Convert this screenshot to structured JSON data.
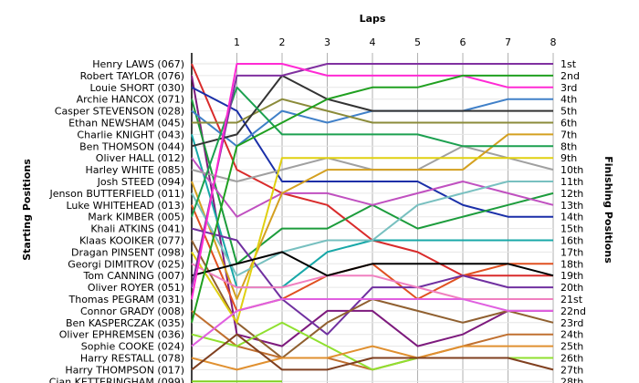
{
  "chart_data": {
    "type": "line",
    "xlabel": "Laps",
    "ylabel_left": "Starting Positions",
    "ylabel_right": "Finishing Positions",
    "laps": [
      1,
      2,
      3,
      4,
      5,
      6,
      7,
      8
    ],
    "finish_labels": [
      "1st",
      "2nd",
      "3rd",
      "4th",
      "5th",
      "6th",
      "7th",
      "8th",
      "9th",
      "10th",
      "11th",
      "12th",
      "13th",
      "14th",
      "15th",
      "16th",
      "17th",
      "18th",
      "19th",
      "20th",
      "21st",
      "22nd",
      "23rd",
      "24th",
      "25th",
      "26th",
      "27th",
      "28th"
    ],
    "grid": true,
    "series": [
      {
        "name": "Henry LAWS (067)",
        "color": "#d92b2b",
        "positions": [
          1,
          10,
          12,
          13,
          16,
          17,
          19,
          19,
          19
        ]
      },
      {
        "name": "Robert TAYLOR (076)",
        "color": "#7d1a7d",
        "positions": [
          2,
          24,
          25,
          22,
          22,
          25,
          24,
          22,
          22
        ]
      },
      {
        "name": "Louie SHORT (030)",
        "color": "#1a2fa8",
        "positions": [
          3,
          5,
          11,
          11,
          11,
          11,
          13,
          14,
          14
        ]
      },
      {
        "name": "Archie HANCOX (071)",
        "color": "#1c9c3c",
        "positions": [
          4,
          18,
          15,
          15,
          13,
          15,
          14,
          13,
          12
        ]
      },
      {
        "name": "Casper STEVENSON (028)",
        "color": "#4080c8",
        "positions": [
          5,
          8,
          5,
          6,
          5,
          5,
          5,
          4,
          4
        ]
      },
      {
        "name": "Ethan NEWSHAM (045)",
        "color": "#8b8b3a",
        "positions": [
          6,
          6,
          4,
          5,
          6,
          6,
          6,
          6,
          6
        ]
      },
      {
        "name": "Charlie KNIGHT (043)",
        "color": "#18a8a8",
        "positions": [
          7,
          20,
          20,
          17,
          16,
          16,
          16,
          16,
          16
        ]
      },
      {
        "name": "Ben THOMSON (044)",
        "color": "#333333",
        "positions": [
          8,
          7,
          2,
          4,
          5,
          5,
          5,
          5,
          5
        ]
      },
      {
        "name": "Oliver HALL (012)",
        "color": "#c050c0",
        "positions": [
          9,
          14,
          12,
          12,
          13,
          12,
          11,
          12,
          13
        ]
      },
      {
        "name": "Harley WHITE (085)",
        "color": "#a0a0a0",
        "positions": [
          10,
          11,
          10,
          9,
          10,
          10,
          8,
          9,
          10
        ]
      },
      {
        "name": "Josh STEED (094)",
        "color": "#d4a020",
        "positions": [
          11,
          21,
          12,
          10,
          10,
          10,
          10,
          7,
          7
        ]
      },
      {
        "name": "Jenson BUTTERFIELD (011)",
        "color": "#78c0c0",
        "positions": [
          12,
          19,
          17,
          16,
          16,
          13,
          12,
          11,
          11
        ]
      },
      {
        "name": "Luke WHITEHEAD (013)",
        "color": "#e05020",
        "positions": [
          13,
          22,
          21,
          19,
          18,
          21,
          19,
          18,
          18
        ]
      },
      {
        "name": "Mark KIMBER (005)",
        "color": "#1ca050",
        "positions": [
          14,
          3,
          7,
          7,
          7,
          7,
          8,
          8,
          8
        ]
      },
      {
        "name": "Khali ATKINS (041)",
        "color": "#7030a0",
        "positions": [
          15,
          16,
          21,
          24,
          20,
          20,
          19,
          20,
          20
        ]
      },
      {
        "name": "Klaas KOOIKER (077)",
        "color": "#906030",
        "positions": [
          16,
          23,
          26,
          23,
          21,
          22,
          23,
          22,
          23
        ]
      },
      {
        "name": "Dragan PINSENT (098)",
        "color": "#e0d010",
        "positions": [
          17,
          23,
          9,
          9,
          9,
          9,
          9,
          9,
          9
        ]
      },
      {
        "name": "Georgi DIMITROV (025)",
        "color": "#f080c0",
        "positions": [
          18,
          20,
          20,
          19,
          19,
          20,
          21,
          21,
          21
        ]
      },
      {
        "name": "Tom CANNING (007)",
        "color": "#000000",
        "positions": [
          19,
          18,
          17,
          19,
          18,
          18,
          18,
          18,
          19
        ]
      },
      {
        "name": "Oliver ROYER (051)",
        "color": "#8030a0",
        "positions": [
          20,
          2,
          2,
          1,
          1,
          1,
          1,
          1,
          1
        ]
      },
      {
        "name": "Thomas PEGRAM (031)",
        "color": "#ff2ad4",
        "positions": [
          21,
          1,
          1,
          2,
          2,
          2,
          2,
          3,
          3
        ]
      },
      {
        "name": "Connor GRADY (008)",
        "color": "#c07030",
        "positions": [
          22,
          25,
          26,
          26,
          27,
          26,
          25,
          24,
          24
        ]
      },
      {
        "name": "Ben KASPERCZAK (035)",
        "color": "#20a020",
        "positions": [
          23,
          8,
          6,
          4,
          3,
          3,
          2,
          2,
          2
        ]
      },
      {
        "name": "Oliver EPHREMSEN (036)",
        "color": "#90e030",
        "positions": [
          24,
          25,
          23,
          25,
          27,
          26,
          26,
          26,
          26
        ]
      },
      {
        "name": "Sophie COOKE (024)",
        "color": "#e060e0",
        "positions": [
          25,
          22,
          21,
          21,
          21,
          21,
          21,
          22,
          22
        ]
      },
      {
        "name": "Harry RESTALL (078)",
        "color": "#e09030",
        "positions": [
          26,
          27,
          26,
          26,
          25,
          26,
          25,
          25,
          25
        ]
      },
      {
        "name": "Harry THOMPSON (017)",
        "color": "#804020",
        "positions": [
          27,
          24,
          27,
          27,
          26,
          26,
          26,
          26,
          27
        ]
      },
      {
        "name": "Cian KETTERINGHAM (099)",
        "color": "#80d020",
        "positions": [
          28,
          28,
          28,
          null,
          null,
          null,
          null,
          null,
          null
        ]
      }
    ]
  }
}
